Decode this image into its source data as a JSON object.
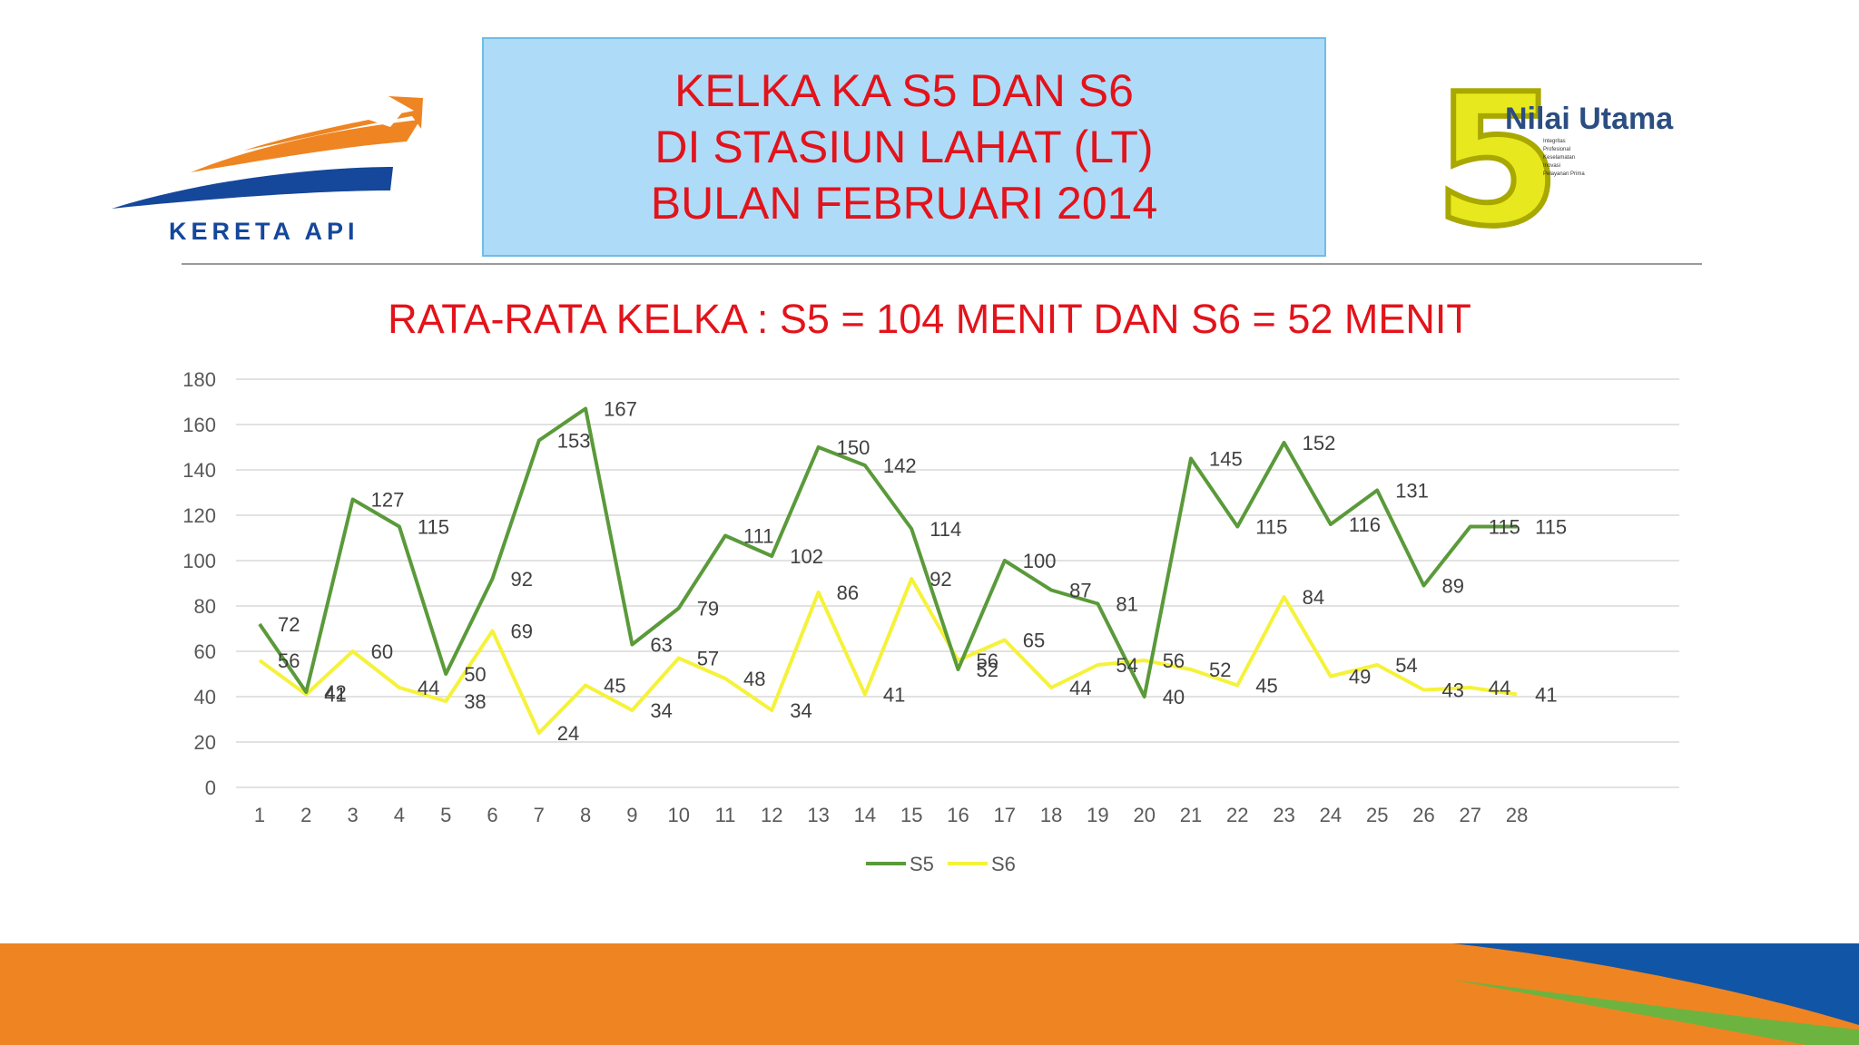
{
  "header": {
    "title_lines": [
      "KELKA KA S5 DAN S6",
      "DI STASIUN LAHAT  (LT)",
      "BULAN FEBRUARI 2014"
    ],
    "left_logo_text": "KERETA API",
    "right_logo": {
      "number": "5",
      "title": "Nilai Utama",
      "values": [
        "Integritas",
        "Profesional",
        "Keselamatan",
        "Inovasi",
        "Pelayanan Prima"
      ]
    }
  },
  "subtitle": "RATA-RATA KELKA : S5  = 104  MENIT DAN S6 =   52 MENIT",
  "colors": {
    "title_red": "#e3131b",
    "s5_green": "#5a9a3a",
    "s6_yellow": "#f5f23a",
    "band_orange": "#ee8522",
    "band_blue": "#1155a6",
    "band_green": "#6db33f"
  },
  "chart_data": {
    "type": "line",
    "x": [
      1,
      2,
      3,
      4,
      5,
      6,
      7,
      8,
      9,
      10,
      11,
      12,
      13,
      14,
      15,
      16,
      17,
      18,
      19,
      20,
      21,
      22,
      23,
      24,
      25,
      26,
      27,
      28
    ],
    "series": [
      {
        "name": "S5",
        "color": "#5a9a3a",
        "values": [
          72,
          42,
          127,
          115,
          50,
          92,
          153,
          167,
          63,
          79,
          111,
          102,
          150,
          142,
          114,
          52,
          100,
          87,
          81,
          40,
          145,
          115,
          152,
          116,
          131,
          89,
          115,
          115
        ]
      },
      {
        "name": "S6",
        "color": "#f5f23a",
        "values": [
          56,
          41,
          60,
          44,
          38,
          69,
          24,
          45,
          34,
          57,
          48,
          34,
          86,
          41,
          92,
          56,
          65,
          44,
          54,
          56,
          52,
          45,
          84,
          49,
          54,
          43,
          44,
          41
        ]
      }
    ],
    "yticks": [
      0,
      20,
      40,
      60,
      80,
      100,
      120,
      140,
      160,
      180
    ],
    "ylim": [
      0,
      180
    ],
    "grid": true,
    "data_labels": true,
    "legend": "bottom"
  }
}
